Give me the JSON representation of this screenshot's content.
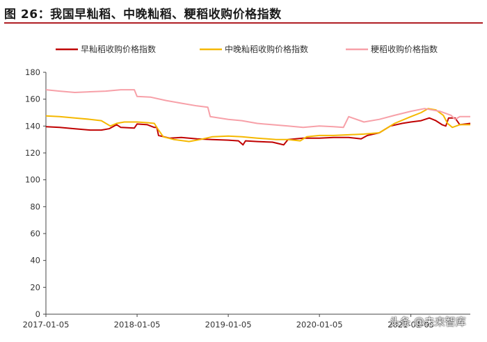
{
  "figure": {
    "title": "图 26：我国早籼稻、中晚籼稻、粳稻收购价格指数"
  },
  "watermark": "头条 @未来智库",
  "colors": {
    "early_indica": "#c00000",
    "mid_late_indica": "#f5b800",
    "japonica": "#f7a0a8",
    "axis": "#444444",
    "title_rule": "#b01e23"
  },
  "chart_data": {
    "type": "line",
    "title": "",
    "xlabel": "",
    "ylabel": "",
    "ylim": [
      0,
      180
    ],
    "yticks": [
      0,
      20,
      40,
      60,
      80,
      100,
      120,
      140,
      160,
      180
    ],
    "xlim": [
      "2017-01-05",
      "2021-08-31"
    ],
    "xticks": [
      "2017-01-05",
      "2018-01-05",
      "2019-01-05",
      "2020-01-05",
      "2021-01-05"
    ],
    "grid": false,
    "legend": "top",
    "series": [
      {
        "name": "早籼稻收购价格指数",
        "color_key": "early_indica",
        "points": [
          [
            "2017-01-05",
            139.5
          ],
          [
            "2017-03-01",
            139
          ],
          [
            "2017-05-01",
            138
          ],
          [
            "2017-07-01",
            137
          ],
          [
            "2017-08-15",
            137
          ],
          [
            "2017-09-15",
            138
          ],
          [
            "2017-10-15",
            141
          ],
          [
            "2017-11-01",
            139
          ],
          [
            "2017-12-25",
            138.5
          ],
          [
            "2018-01-05",
            141.5
          ],
          [
            "2018-02-15",
            141
          ],
          [
            "2018-03-15",
            139
          ],
          [
            "2018-03-25",
            139
          ],
          [
            "2018-04-01",
            133
          ],
          [
            "2018-05-15",
            131
          ],
          [
            "2018-07-01",
            131.5
          ],
          [
            "2018-09-01",
            130.5
          ],
          [
            "2018-11-01",
            130
          ],
          [
            "2019-01-05",
            129.5
          ],
          [
            "2019-02-15",
            129
          ],
          [
            "2019-03-05",
            126
          ],
          [
            "2019-03-15",
            129
          ],
          [
            "2019-05-01",
            128.5
          ],
          [
            "2019-07-01",
            128
          ],
          [
            "2019-08-15",
            126
          ],
          [
            "2019-09-01",
            130
          ],
          [
            "2019-11-01",
            131
          ],
          [
            "2020-01-05",
            131
          ],
          [
            "2020-03-01",
            131.5
          ],
          [
            "2020-05-01",
            131.5
          ],
          [
            "2020-06-20",
            130.5
          ],
          [
            "2020-07-15",
            133
          ],
          [
            "2020-09-01",
            135
          ],
          [
            "2020-10-15",
            140
          ],
          [
            "2020-12-01",
            142
          ],
          [
            "2021-01-05",
            143
          ],
          [
            "2021-02-15",
            144
          ],
          [
            "2021-03-20",
            146
          ],
          [
            "2021-04-15",
            144
          ],
          [
            "2021-05-10",
            141
          ],
          [
            "2021-05-25",
            140
          ],
          [
            "2021-06-05",
            146
          ],
          [
            "2021-07-01",
            146
          ],
          [
            "2021-07-20",
            141
          ],
          [
            "2021-08-31",
            142
          ]
        ]
      },
      {
        "name": "中晚籼稻收购价格指数",
        "color_key": "mid_late_indica",
        "points": [
          [
            "2017-01-05",
            147.5
          ],
          [
            "2017-03-01",
            147
          ],
          [
            "2017-05-01",
            146
          ],
          [
            "2017-07-01",
            145
          ],
          [
            "2017-08-15",
            144
          ],
          [
            "2017-09-20",
            140
          ],
          [
            "2017-10-15",
            142
          ],
          [
            "2017-11-15",
            143
          ],
          [
            "2018-01-05",
            143
          ],
          [
            "2018-02-15",
            142.5
          ],
          [
            "2018-03-15",
            142
          ],
          [
            "2018-04-01",
            137
          ],
          [
            "2018-04-20",
            132
          ],
          [
            "2018-06-01",
            130
          ],
          [
            "2018-08-01",
            128.5
          ],
          [
            "2018-09-15",
            130
          ],
          [
            "2018-11-01",
            132
          ],
          [
            "2019-01-05",
            132.5
          ],
          [
            "2019-03-01",
            132
          ],
          [
            "2019-05-01",
            131
          ],
          [
            "2019-07-15",
            130
          ],
          [
            "2019-09-01",
            130
          ],
          [
            "2019-10-20",
            129
          ],
          [
            "2019-11-15",
            132
          ],
          [
            "2020-01-05",
            133
          ],
          [
            "2020-03-01",
            133
          ],
          [
            "2020-05-01",
            133.5
          ],
          [
            "2020-07-01",
            134
          ],
          [
            "2020-09-01",
            135
          ],
          [
            "2020-11-01",
            142
          ],
          [
            "2021-01-05",
            147
          ],
          [
            "2021-02-15",
            150
          ],
          [
            "2021-03-15",
            153
          ],
          [
            "2021-04-15",
            152
          ],
          [
            "2021-05-15",
            148
          ],
          [
            "2021-06-01",
            142
          ],
          [
            "2021-06-20",
            139
          ],
          [
            "2021-07-20",
            141
          ],
          [
            "2021-08-31",
            141
          ]
        ]
      },
      {
        "name": "粳稻收购价格指数",
        "color_key": "japonica",
        "points": [
          [
            "2017-01-05",
            167
          ],
          [
            "2017-03-01",
            166
          ],
          [
            "2017-05-01",
            165
          ],
          [
            "2017-07-01",
            165.5
          ],
          [
            "2017-09-01",
            166
          ],
          [
            "2017-11-01",
            167
          ],
          [
            "2017-12-25",
            167
          ],
          [
            "2018-01-05",
            162
          ],
          [
            "2018-03-01",
            161.5
          ],
          [
            "2018-05-01",
            159
          ],
          [
            "2018-07-01",
            157
          ],
          [
            "2018-09-01",
            155
          ],
          [
            "2018-10-15",
            154
          ],
          [
            "2018-10-25",
            147
          ],
          [
            "2019-01-05",
            145
          ],
          [
            "2019-03-01",
            144
          ],
          [
            "2019-05-01",
            142
          ],
          [
            "2019-07-01",
            141
          ],
          [
            "2019-09-01",
            140
          ],
          [
            "2019-11-01",
            139
          ],
          [
            "2020-01-05",
            140
          ],
          [
            "2020-03-01",
            139.5
          ],
          [
            "2020-04-10",
            139
          ],
          [
            "2020-05-01",
            147
          ],
          [
            "2020-07-01",
            143
          ],
          [
            "2020-09-01",
            145
          ],
          [
            "2020-11-01",
            148
          ],
          [
            "2021-01-05",
            151
          ],
          [
            "2021-03-01",
            153
          ],
          [
            "2021-05-01",
            151
          ],
          [
            "2021-06-15",
            148
          ],
          [
            "2021-07-01",
            145
          ],
          [
            "2021-07-20",
            147
          ],
          [
            "2021-08-31",
            147
          ]
        ]
      }
    ]
  }
}
